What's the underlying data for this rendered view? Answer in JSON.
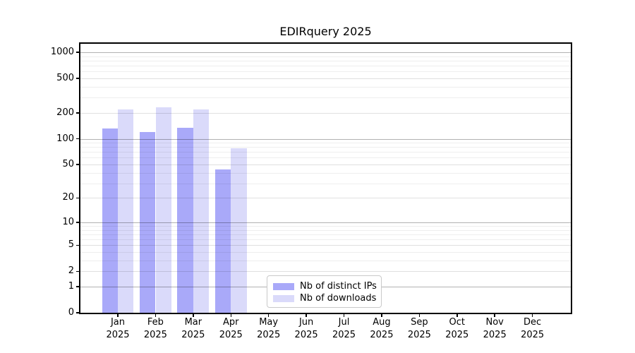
{
  "chart_data": {
    "type": "bar",
    "title": "EDIRquery 2025",
    "categories": [
      "Jan",
      "Feb",
      "Mar",
      "Apr",
      "May",
      "Jun",
      "Jul",
      "Aug",
      "Sep",
      "Oct",
      "Nov",
      "Dec"
    ],
    "x_tick_line2": "2025",
    "series": [
      {
        "name": "Nb of distinct IPs",
        "color": "#a9a9f9",
        "values": [
          131,
          119,
          134,
          44,
          0,
          0,
          0,
          0,
          0,
          0,
          0,
          0
        ]
      },
      {
        "name": "Nb of downloads",
        "color": "#dadafa",
        "values": [
          219,
          230,
          219,
          78,
          0,
          0,
          0,
          0,
          0,
          0,
          0,
          0
        ]
      }
    ],
    "y_ticks": [
      0,
      1,
      2,
      5,
      10,
      20,
      50,
      100,
      200,
      500,
      1000
    ],
    "y_scale": "symlog",
    "ylim": [
      0,
      1200
    ],
    "xlabel": "",
    "ylabel": "",
    "grid": true,
    "legend_position": "lower center",
    "background": "#ffffff",
    "gridline_decade_color": "rgba(0,0,0,0.30)",
    "gridline_mid_color": "rgba(0,0,0,0.12)",
    "gridline_minor_color": "rgba(0,0,0,0.065)"
  }
}
